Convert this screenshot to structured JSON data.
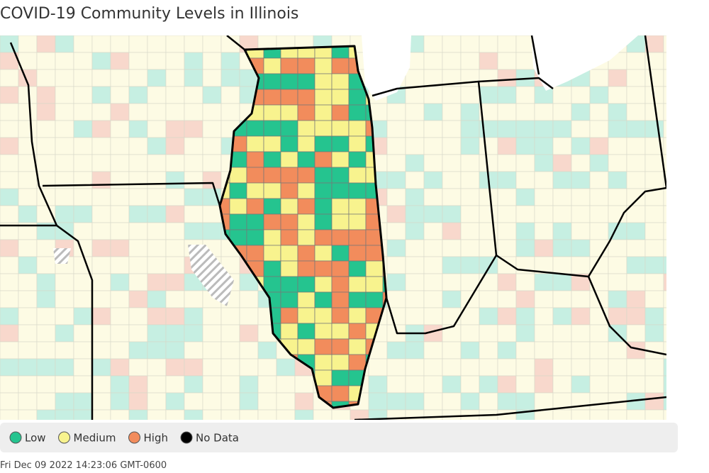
{
  "header": {
    "title": "COVID-19 Community Levels in Illinois"
  },
  "legend": {
    "items": [
      {
        "label": "Low",
        "color": "#25c48f"
      },
      {
        "label": "Medium",
        "color": "#f8f38e"
      },
      {
        "label": "High",
        "color": "#f28c5c"
      },
      {
        "label": "No Data",
        "color": "#000000"
      }
    ]
  },
  "timestamp": "Fri Dec 09 2022 14:23:06 GMT-0600"
}
